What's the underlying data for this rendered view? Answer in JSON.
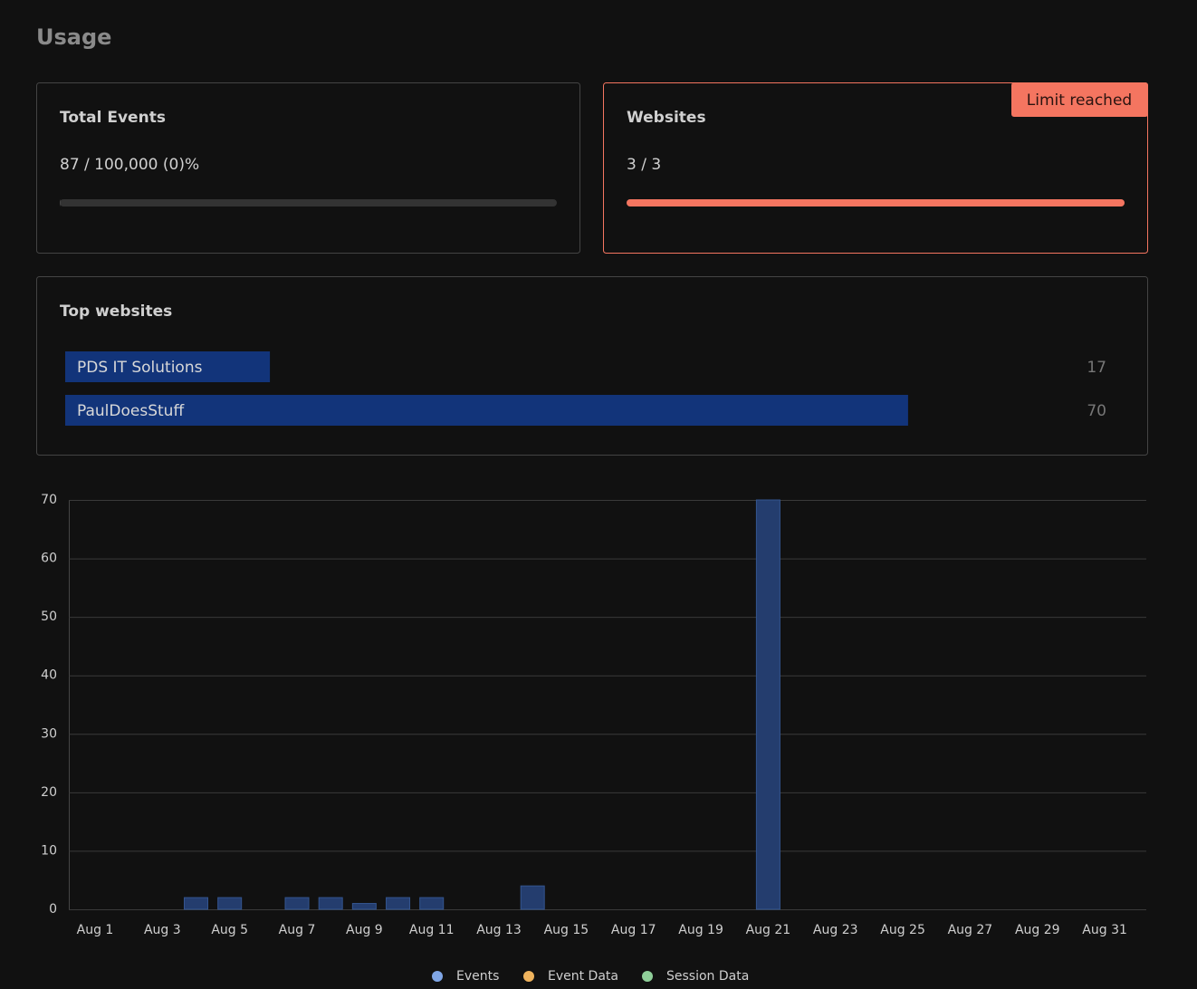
{
  "header": {
    "title": "Usage"
  },
  "cards": [
    {
      "title": "Total Events",
      "label": "87 / 100,000 (0)%",
      "value": 87,
      "limit": 100000
    },
    {
      "title": "Websites",
      "label": "3 / 3",
      "value": 3,
      "limit": 3,
      "badge": "Limit reached"
    }
  ],
  "top_websites": {
    "title": "Top websites",
    "items": [
      {
        "name": "PDS IT Solutions",
        "value": 17
      },
      {
        "name": "PaulDoesStuff",
        "value": 70
      }
    ]
  },
  "chart_data": {
    "type": "bar",
    "categories": [
      "Aug 1",
      null,
      "Aug 3",
      null,
      "Aug 5",
      null,
      "Aug 7",
      null,
      "Aug 9",
      null,
      "Aug 11",
      null,
      "Aug 13",
      null,
      "Aug 15",
      null,
      "Aug 17",
      null,
      "Aug 19",
      null,
      "Aug 21",
      null,
      "Aug 23",
      null,
      "Aug 25",
      null,
      "Aug 27",
      null,
      "Aug 29",
      null,
      "Aug 31"
    ],
    "series": [
      {
        "name": "Events",
        "color": "#7fa6e6",
        "values": [
          0,
          0,
          0,
          2,
          2,
          0,
          2,
          2,
          1,
          2,
          2,
          0,
          0,
          4,
          0,
          0,
          0,
          0,
          0,
          0,
          70,
          0,
          0,
          0,
          0,
          0,
          0,
          0,
          0,
          0,
          0
        ]
      },
      {
        "name": "Event Data",
        "color": "#efb35d",
        "values": [
          0,
          0,
          0,
          0,
          0,
          0,
          0,
          0,
          0,
          0,
          0,
          0,
          0,
          0,
          0,
          0,
          0,
          0,
          0,
          0,
          0,
          0,
          0,
          0,
          0,
          0,
          0,
          0,
          0,
          0,
          0
        ]
      },
      {
        "name": "Session Data",
        "color": "#8fcf99",
        "values": [
          0,
          0,
          0,
          0,
          0,
          0,
          0,
          0,
          0,
          0,
          0,
          0,
          0,
          0,
          0,
          0,
          0,
          0,
          0,
          0,
          0,
          0,
          0,
          0,
          0,
          0,
          0,
          0,
          0,
          0,
          0
        ]
      }
    ],
    "ylim": [
      0,
      70
    ],
    "yticks": [
      0,
      10,
      20,
      30,
      40,
      50,
      60,
      70
    ],
    "grid": true
  }
}
